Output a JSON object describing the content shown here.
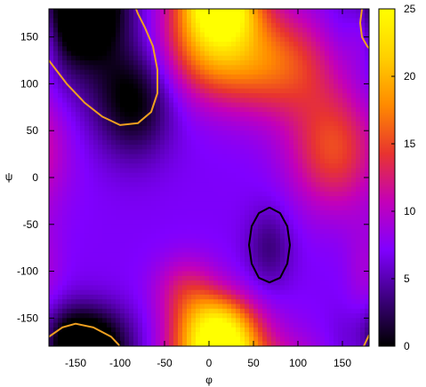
{
  "chart_data": {
    "type": "heatmap",
    "title": "",
    "xlabel": "φ",
    "ylabel": "ψ",
    "xlim": [
      -180,
      180
    ],
    "ylim": [
      -180,
      180
    ],
    "x_ticks": [
      -150,
      -100,
      -50,
      0,
      50,
      100,
      150
    ],
    "y_ticks": [
      -150,
      -100,
      -50,
      0,
      50,
      100,
      150
    ],
    "colorbar": {
      "range": [
        0,
        25
      ],
      "ticks": [
        0,
        5,
        10,
        15,
        20,
        25
      ],
      "palette": [
        "#000000",
        "#3d007f",
        "#8000ff",
        "#c400b8",
        "#e8342f",
        "#ff8a00",
        "#ffd000",
        "#ffff00"
      ]
    },
    "grid": false,
    "legend": "none",
    "surface_description": "free energy landscape approximated by weighted Gaussian terms",
    "surface": {
      "base": 7,
      "terms": [
        {
          "x": -150,
          "y": 165,
          "amplitude": -7,
          "sx": 35,
          "sy": 30
        },
        {
          "x": -85,
          "y": 80,
          "amplitude": -7,
          "sx": 30,
          "sy": 40
        },
        {
          "x": -140,
          "y": 130,
          "amplitude": -3,
          "sx": 40,
          "sy": 40
        },
        {
          "x": -140,
          "y": -170,
          "amplitude": -6,
          "sx": 35,
          "sy": 25
        },
        {
          "x": 68,
          "y": -75,
          "amplitude": -3.5,
          "sx": 18,
          "sy": 30
        },
        {
          "x": 5,
          "y": 145,
          "amplitude": 12,
          "sx": 40,
          "sy": 40
        },
        {
          "x": 15,
          "y": 170,
          "amplitude": 6,
          "sx": 25,
          "sy": 20
        },
        {
          "x": 80,
          "y": 120,
          "amplitude": 8,
          "sx": 45,
          "sy": 40
        },
        {
          "x": 140,
          "y": 30,
          "amplitude": 8,
          "sx": 35,
          "sy": 45
        },
        {
          "x": 10,
          "y": -160,
          "amplitude": 13,
          "sx": 30,
          "sy": 25
        },
        {
          "x": -25,
          "y": -120,
          "amplitude": 5,
          "sx": 25,
          "sy": 25
        },
        {
          "x": 175,
          "y": 160,
          "amplitude": 5,
          "sx": 15,
          "sy": 30
        },
        {
          "x": 175,
          "y": -100,
          "amplitude": 2,
          "sx": 15,
          "sy": 40
        }
      ]
    },
    "contours": [
      {
        "name": "",
        "color": "#f0a020",
        "points": [
          [
            -180,
            125
          ],
          [
            -160,
            100
          ],
          [
            -140,
            80
          ],
          [
            -120,
            65
          ],
          [
            -100,
            56
          ],
          [
            -80,
            58
          ],
          [
            -65,
            70
          ],
          [
            -58,
            90
          ],
          [
            -58,
            115
          ],
          [
            -63,
            140
          ],
          [
            -72,
            160
          ],
          [
            -80,
            175
          ],
          [
            -82,
            180
          ]
        ]
      },
      {
        "name": "",
        "color": "#f0a020",
        "points": [
          [
            -180,
            -170
          ],
          [
            -165,
            -160
          ],
          [
            -150,
            -156
          ],
          [
            -130,
            -160
          ],
          [
            -110,
            -170
          ],
          [
            -100,
            -180
          ]
        ]
      },
      {
        "name": "",
        "color": "#f0a020",
        "points": [
          [
            172,
            180
          ],
          [
            170,
            165
          ],
          [
            172,
            150
          ],
          [
            178,
            140
          ],
          [
            180,
            138
          ]
        ]
      },
      {
        "name": "",
        "color": "#f0a020",
        "points": [
          [
            174,
            -180
          ],
          [
            178,
            -172
          ],
          [
            180,
            -168
          ]
        ]
      },
      {
        "name": "",
        "color": "#000000",
        "points": [
          [
            68,
            -32
          ],
          [
            80,
            -38
          ],
          [
            88,
            -52
          ],
          [
            91,
            -72
          ],
          [
            88,
            -92
          ],
          [
            80,
            -107
          ],
          [
            68,
            -112
          ],
          [
            56,
            -107
          ],
          [
            48,
            -92
          ],
          [
            45,
            -72
          ],
          [
            48,
            -52
          ],
          [
            56,
            -38
          ],
          [
            68,
            -32
          ]
        ]
      }
    ]
  }
}
